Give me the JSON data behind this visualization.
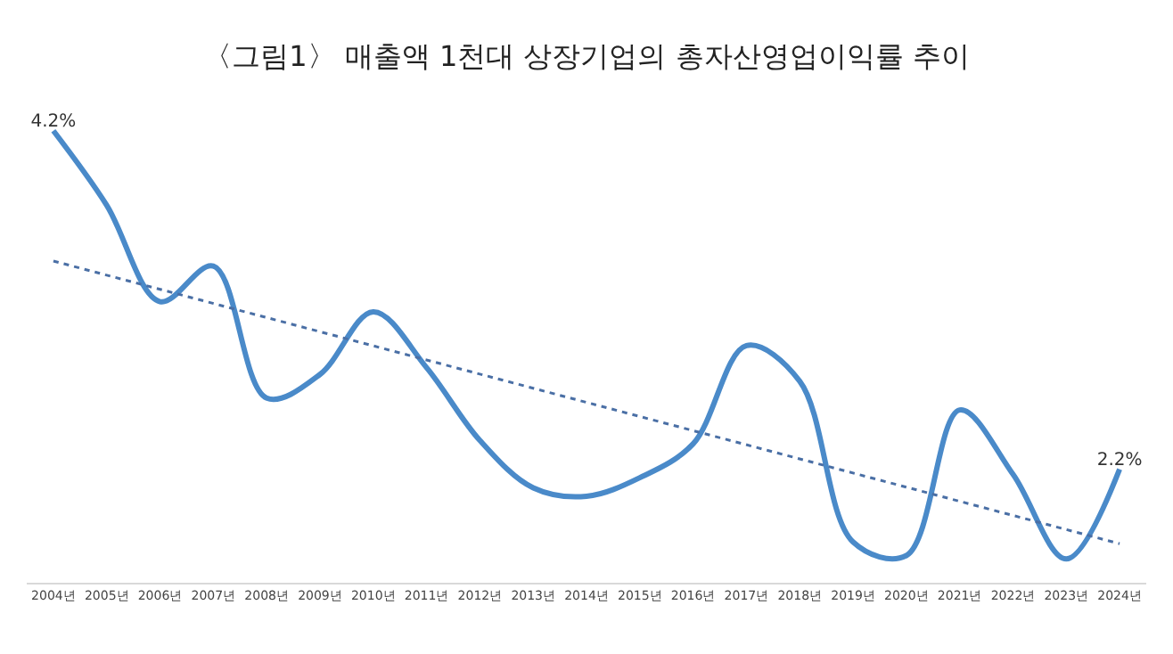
{
  "chart_data": {
    "type": "line",
    "title": "〈그림1〉 매출액 1천대 상장기업의 총자산영업이익률 추이",
    "tick_labels": "x",
    "marker": "none",
    "categories": [
      "2004년",
      "2005년",
      "2006년",
      "2007년",
      "2008년",
      "2009년",
      "2010년",
      "2011년",
      "2012년",
      "2013년",
      "2014년",
      "2015년",
      "2016년",
      "2017년",
      "2018년",
      "2019년",
      "2020년",
      "2021년",
      "2022년",
      "2023년",
      "2024년"
    ],
    "series": [
      {
        "color": "#4a8ac9",
        "line_style": "solid",
        "values": [
          4.2,
          3.76,
          3.19,
          3.4,
          2.62,
          2.76,
          3.13,
          2.8,
          2.37,
          2.09,
          2.04,
          2.15,
          2.35,
          2.93,
          2.72,
          1.77,
          1.69,
          2.55,
          2.17,
          1.67,
          2.2
        ],
        "value_labels": [
          "4.2%",
          null,
          null,
          null,
          null,
          null,
          null,
          null,
          null,
          null,
          null,
          null,
          null,
          null,
          null,
          null,
          null,
          null,
          null,
          null,
          "2.2%"
        ]
      },
      {
        "color": "#4a6fa5",
        "line_style": "dotted",
        "x": [
          "2004년",
          "2024년"
        ],
        "values": [
          3.43,
          1.76
        ]
      }
    ]
  }
}
